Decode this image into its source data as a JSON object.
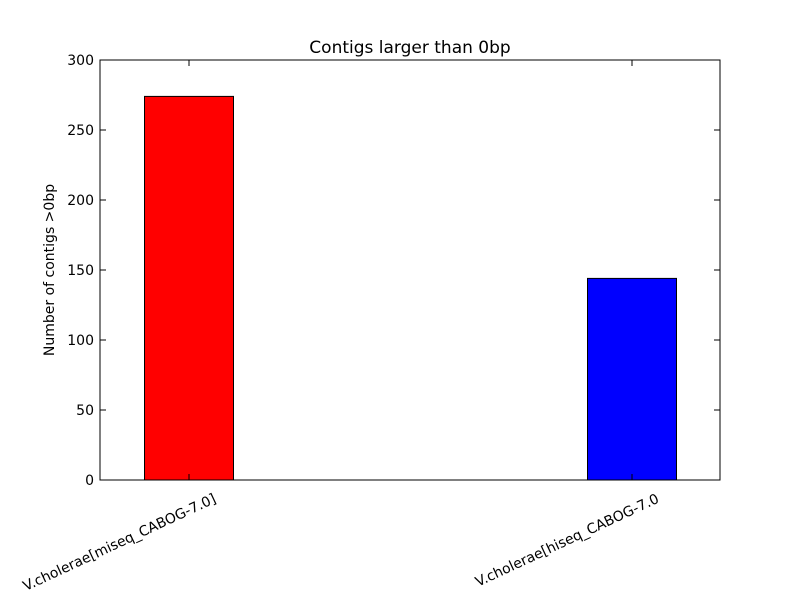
{
  "chart_data": {
    "type": "bar",
    "title": "Contigs larger than 0bp",
    "xlabel": "",
    "ylabel": "Number of contigs >0bp",
    "categories": [
      "V.cholerae[miseq_CABOG-7.0]",
      "V.cholerae[hiseq_CABOG-7.0"
    ],
    "values": [
      274,
      144
    ],
    "colors": [
      "#ff0000",
      "#0000ff"
    ],
    "ylim": [
      0,
      300
    ],
    "yticks": [
      0,
      50,
      100,
      150,
      200,
      250,
      300
    ],
    "ytick_labels": [
      "0",
      "50",
      "100",
      "150",
      "200",
      "250",
      "300"
    ],
    "grid": false,
    "legend": "none"
  }
}
